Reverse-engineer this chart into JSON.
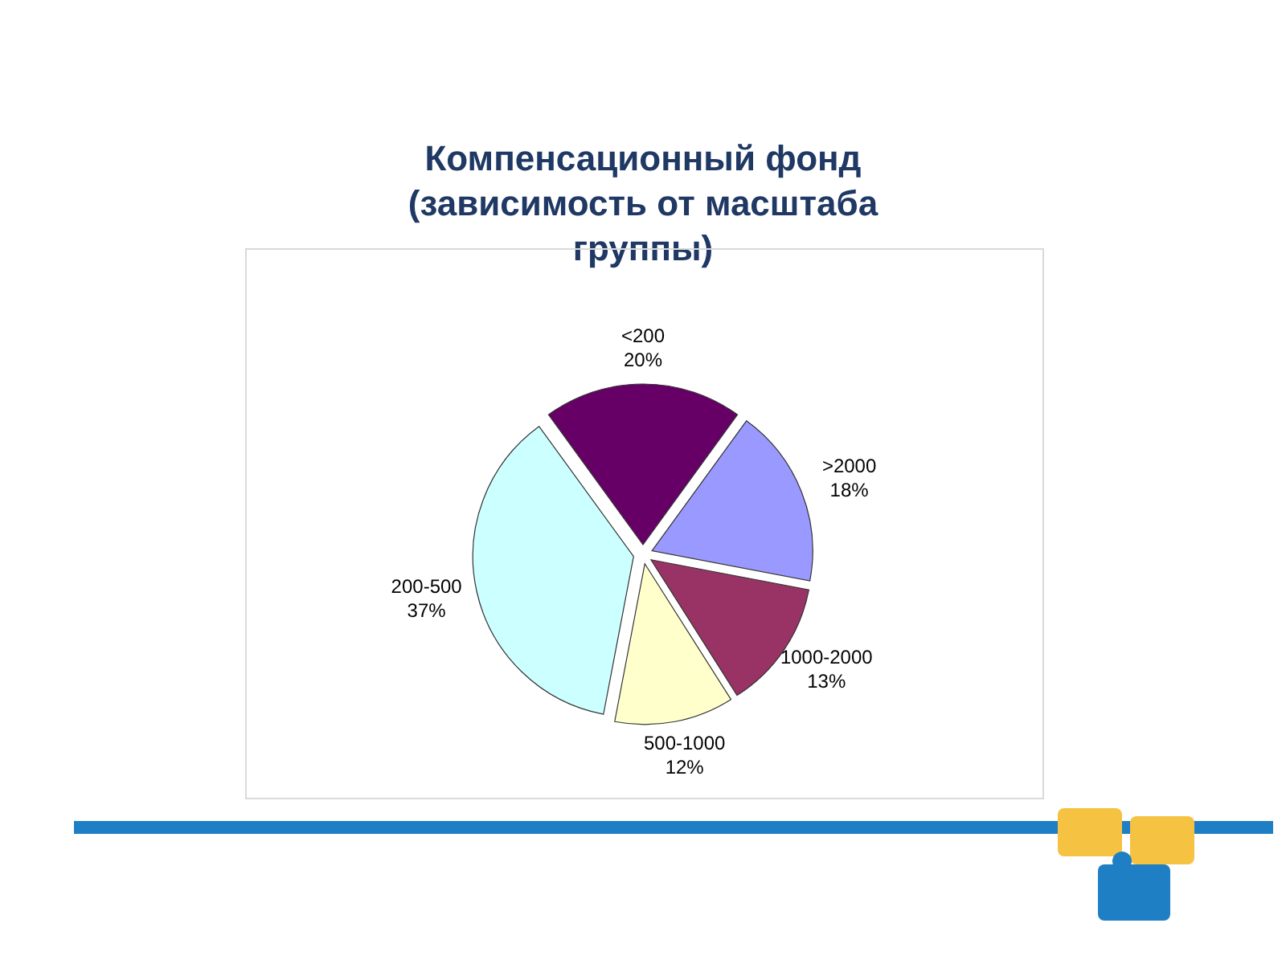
{
  "chart_data": {
    "type": "pie",
    "title": "Компенсационный фонд (зависимость от масштаба группы)",
    "categories": [
      "<200",
      ">2000",
      "1000-2000",
      "500-1000",
      "200-500"
    ],
    "values": [
      20,
      18,
      13,
      12,
      37
    ],
    "colors": [
      "#660066",
      "#9999ff",
      "#993366",
      "#ffffcc",
      "#ccffff"
    ],
    "value_labels": [
      "20%",
      "18%",
      "13%",
      "12%",
      "37%"
    ]
  }
}
